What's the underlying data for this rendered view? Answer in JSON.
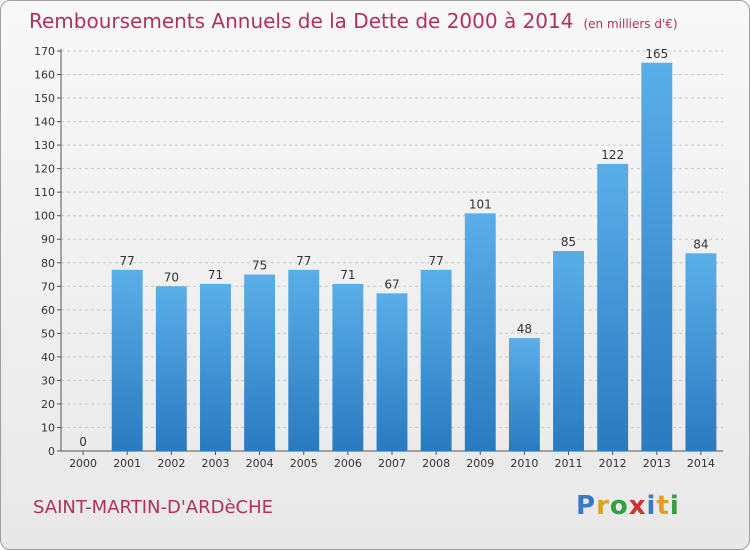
{
  "title": "Remboursements Annuels de la Dette de 2000 à 2014",
  "unit": "(en milliers d'€)",
  "commune": "SAINT-MARTIN-D'ARDèCHE",
  "logo": {
    "letters": [
      "P",
      "r",
      "o",
      "x",
      "i",
      "t",
      "i"
    ],
    "colors": [
      "#3a78c8",
      "#e0a020",
      "#30a040",
      "#d03030",
      "#3a78c8",
      "#e0a020",
      "#30a040"
    ]
  },
  "colors": {
    "title": "#b03060",
    "bar_top": "#5aaee8",
    "bar_bottom": "#2a7ac0",
    "grid": "#c8c8c8"
  },
  "chart_data": {
    "type": "bar",
    "categories": [
      "2000",
      "2001",
      "2002",
      "2003",
      "2004",
      "2005",
      "2006",
      "2007",
      "2008",
      "2009",
      "2010",
      "2011",
      "2012",
      "2013",
      "2014"
    ],
    "values": [
      0,
      77,
      70,
      71,
      75,
      77,
      71,
      67,
      77,
      101,
      48,
      85,
      122,
      165,
      84
    ],
    "ylim": [
      0,
      170
    ],
    "ytick_step": 10,
    "grid": true
  }
}
